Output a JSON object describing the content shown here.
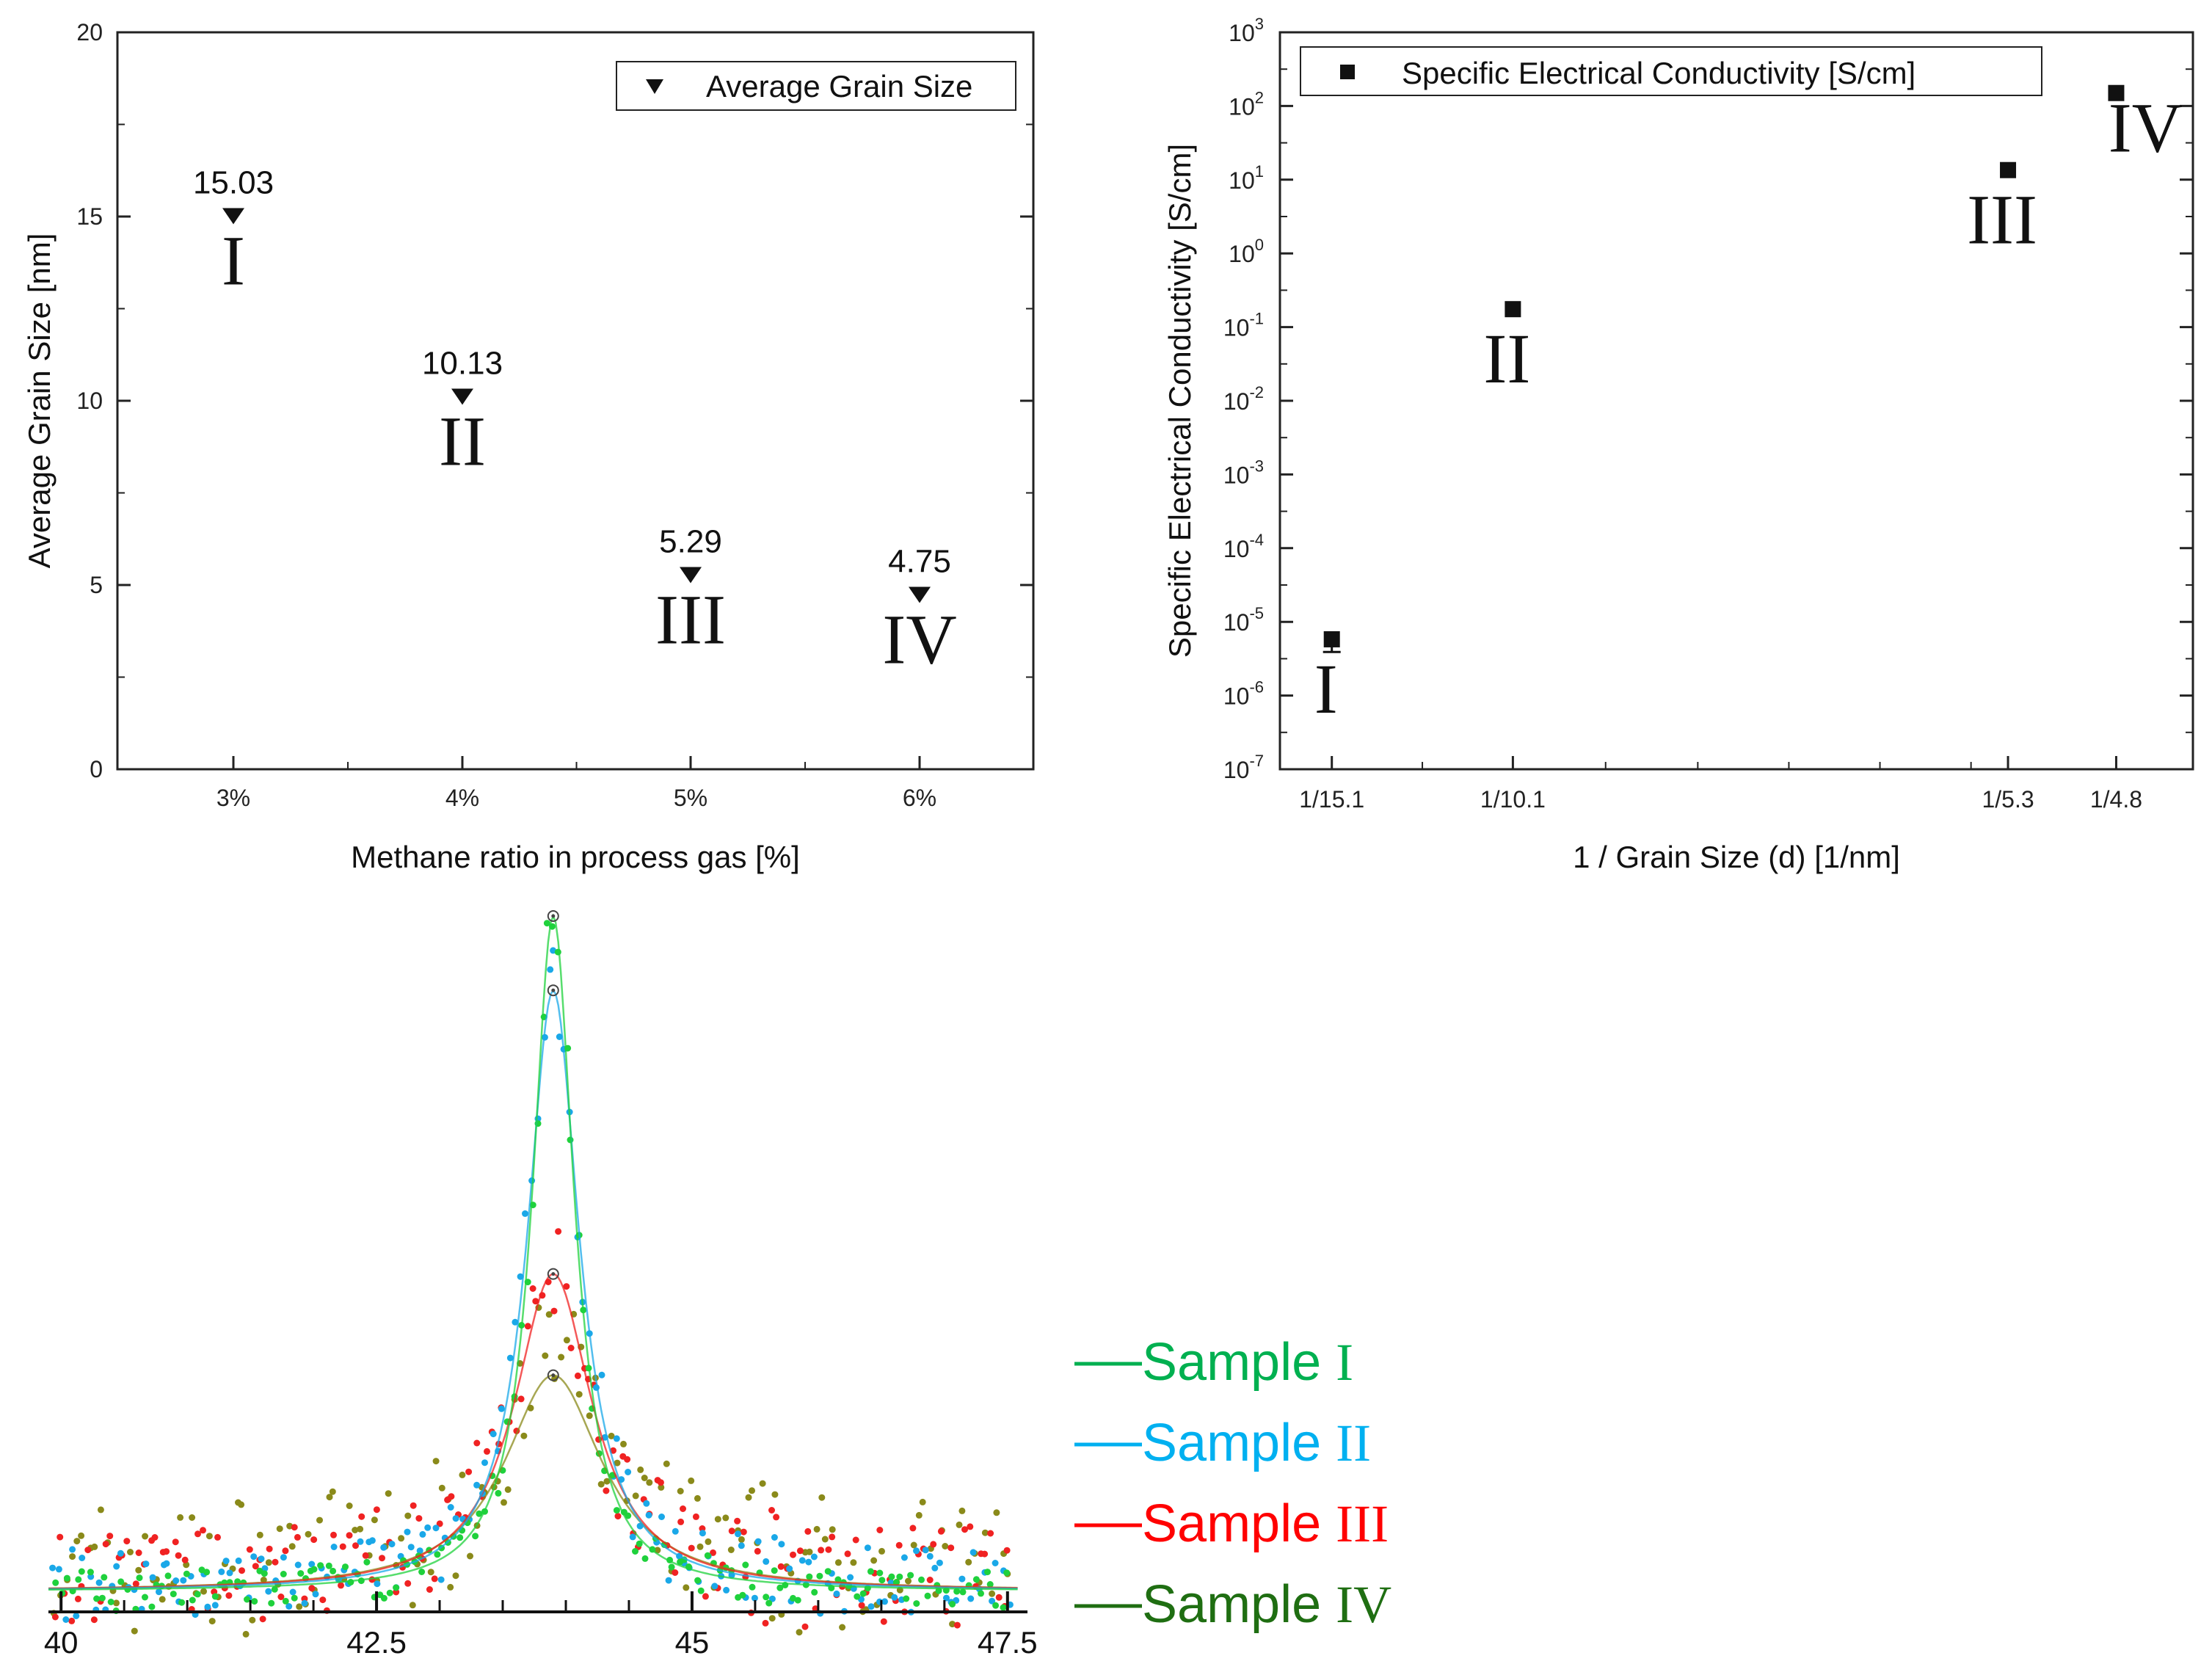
{
  "chart_data": [
    {
      "type": "scatter",
      "title": "",
      "xlabel": "Methane ratio in process gas [%]",
      "ylabel": "Average Grain Size [nm]",
      "categories": [
        "3%",
        "4%",
        "5%",
        "6%"
      ],
      "ylim": [
        0,
        20
      ],
      "yticks": [
        "0",
        "5",
        "10",
        "15",
        "20"
      ],
      "legend": "top-right",
      "series": [
        {
          "name": "Average Grain Size",
          "values": [
            15.03,
            10.13,
            5.29,
            4.75
          ]
        }
      ],
      "data_labels": [
        "15.03",
        "10.13",
        "5.29",
        "4.75"
      ],
      "annotations": [
        "I",
        "II",
        "III",
        "IV"
      ]
    },
    {
      "type": "scatter",
      "title": "",
      "xlabel": "1 / Grain Size (d) [1/nm]",
      "ylabel": "Specific Electrical Conductivity [S/cm]",
      "y_scale": "log",
      "yexp_range": [
        -7,
        3
      ],
      "ytick_base": "10",
      "yticks_exponents": [
        "-7",
        "-6",
        "-5",
        "-4",
        "-3",
        "-2",
        "-1",
        "0",
        "1",
        "2",
        "3"
      ],
      "categories": [
        "1/15.1",
        "1/10.1",
        "1/5.3",
        "1/4.8"
      ],
      "x": [
        0.0662,
        0.099,
        0.1887,
        0.2083
      ],
      "xlim": [
        0.0568,
        0.2222
      ],
      "legend": "top-left",
      "series": [
        {
          "name": "Specific Electrical Conductivity [S/cm]",
          "values": [
            5.8e-06,
            0.175,
            13.5,
            150
          ]
        }
      ],
      "error_low": [
        3.9e-06,
        0.175,
        13.5,
        150
      ],
      "error_high": [
        5.8e-06,
        0.175,
        13.5,
        150
      ],
      "annotations": [
        "I",
        "II",
        "III",
        "IV"
      ]
    },
    {
      "type": "line",
      "title": "",
      "xlabel": "",
      "ylabel": "",
      "xlim": [
        39.9,
        47.6
      ],
      "xticks": [
        "40",
        "42.5",
        "45",
        "47.5"
      ],
      "xtick_values": [
        40,
        42.5,
        45,
        47.5
      ],
      "peak_position": 43.9,
      "series": [
        {
          "name": "Sample I",
          "label_text": "Sample ",
          "label_roman": "I",
          "color": "#1fd13c",
          "peak_height": 1.0,
          "width": 0.4
        },
        {
          "name": "Sample II",
          "label_text": "Sample ",
          "label_roman": "II",
          "color": "#1aa8e8",
          "peak_height": 0.89,
          "width": 0.5
        },
        {
          "name": "Sample III",
          "label_text": "Sample ",
          "label_roman": "III",
          "color": "#f02222",
          "peak_height": 0.47,
          "width": 0.75
        },
        {
          "name": "Sample IV",
          "label_text": "Sample ",
          "label_roman": "IV",
          "color": "#8a8a1a",
          "peak_height": 0.32,
          "width": 0.95
        }
      ],
      "legend_colors": [
        "#00b050",
        "#00b0f0",
        "#ff0000",
        "#1f6e12"
      ]
    }
  ]
}
